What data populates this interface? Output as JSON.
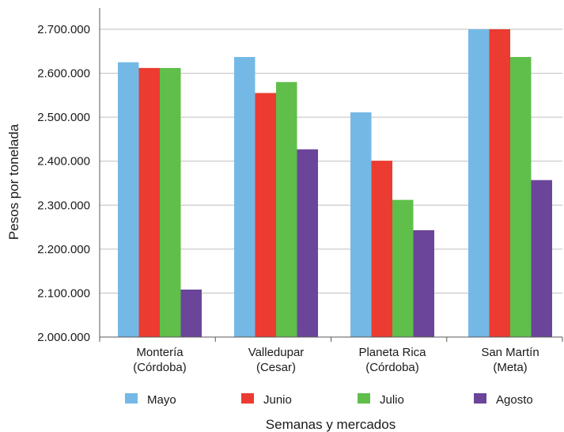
{
  "chart_data": {
    "type": "bar",
    "categories": [
      [
        "Montería",
        "(Córdoba)"
      ],
      [
        "Valledupar",
        "(Cesar)"
      ],
      [
        "Planeta Rica",
        "(Córdoba)"
      ],
      [
        "San Martín",
        "(Meta)"
      ]
    ],
    "series": [
      {
        "name": "Mayo",
        "color": "#74b9e6",
        "values": [
          2625000,
          2637000,
          2511000,
          2700000
        ]
      },
      {
        "name": "Junio",
        "color": "#ec3b30",
        "values": [
          2612000,
          2555000,
          2401000,
          2700000
        ]
      },
      {
        "name": "Julio",
        "color": "#5fbf4a",
        "values": [
          2612000,
          2580000,
          2312000,
          2637000
        ]
      },
      {
        "name": "Agosto",
        "color": "#6b459a",
        "values": [
          2108000,
          2427000,
          2243000,
          2357000
        ]
      }
    ],
    "ylim": [
      2000000,
      2720000
    ],
    "yticks": [
      "2.000.000",
      "2.100.000",
      "2.200.000",
      "2.300.000",
      "2.400.000",
      "2.500.000",
      "2.600.000",
      "2.700.000"
    ],
    "ytick_values": [
      2000000,
      2100000,
      2200000,
      2300000,
      2400000,
      2500000,
      2600000,
      2700000
    ],
    "xlabel": "Semanas y mercados",
    "ylabel": "Pesos por tonelada",
    "grid": true,
    "legend_position": "bottom"
  }
}
